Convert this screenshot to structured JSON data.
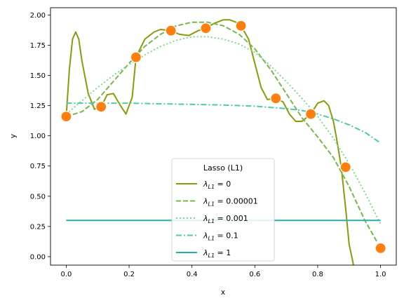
{
  "chart_data": {
    "type": "line",
    "xlabel": "x",
    "ylabel": "y",
    "xlim": [
      -0.05,
      1.05
    ],
    "ylim": [
      -0.07,
      2.06
    ],
    "xticks": [
      "0.0",
      "0.2",
      "0.4",
      "0.6",
      "0.8",
      "1.0"
    ],
    "yticks": [
      "0.00",
      "0.25",
      "0.50",
      "0.75",
      "1.00",
      "1.25",
      "1.50",
      "1.75",
      "2.00"
    ],
    "grid": false,
    "legend": {
      "title": "Lasso (L1)",
      "placement": "lower-center",
      "entries": [
        {
          "base": "λ",
          "sub": "L1",
          "value": "= 0"
        },
        {
          "base": "λ",
          "sub": "L1",
          "value": "= 0.00001"
        },
        {
          "base": "λ",
          "sub": "L1",
          "value": "= 0.001"
        },
        {
          "base": "λ",
          "sub": "L1",
          "value": "= 0.1"
        },
        {
          "base": "λ",
          "sub": "L1",
          "value": "= 1"
        }
      ]
    },
    "points": {
      "x": [
        0.0,
        0.111,
        0.222,
        0.333,
        0.444,
        0.556,
        0.667,
        0.778,
        0.889,
        1.0
      ],
      "y": [
        1.16,
        1.24,
        1.65,
        1.87,
        1.89,
        1.91,
        1.31,
        1.18,
        0.74,
        0.07
      ],
      "color": "#ff7f0e"
    },
    "series": [
      {
        "color": "#8c9a0a",
        "dash": "solid",
        "x": [
          0.0,
          0.01,
          0.02,
          0.03,
          0.04,
          0.05,
          0.07,
          0.09,
          0.111,
          0.13,
          0.15,
          0.17,
          0.19,
          0.21,
          0.222,
          0.25,
          0.28,
          0.3,
          0.333,
          0.36,
          0.39,
          0.42,
          0.444,
          0.47,
          0.5,
          0.52,
          0.54,
          0.556,
          0.58,
          0.6,
          0.62,
          0.64,
          0.667,
          0.69,
          0.71,
          0.73,
          0.75,
          0.778,
          0.8,
          0.82,
          0.835,
          0.85,
          0.86,
          0.875,
          0.889,
          0.9,
          0.91,
          0.916
        ],
        "y": [
          1.16,
          1.55,
          1.8,
          1.86,
          1.8,
          1.62,
          1.35,
          1.22,
          1.24,
          1.34,
          1.35,
          1.26,
          1.18,
          1.32,
          1.65,
          1.8,
          1.86,
          1.88,
          1.87,
          1.84,
          1.83,
          1.87,
          1.89,
          1.93,
          1.96,
          1.96,
          1.94,
          1.91,
          1.8,
          1.6,
          1.4,
          1.3,
          1.31,
          1.28,
          1.18,
          1.12,
          1.12,
          1.18,
          1.27,
          1.29,
          1.25,
          1.12,
          0.98,
          0.74,
          0.4,
          0.1,
          -0.02,
          -0.1
        ]
      },
      {
        "color": "#7ab648",
        "dash": "dashed",
        "x": [
          0.0,
          0.05,
          0.1,
          0.15,
          0.2,
          0.25,
          0.3,
          0.35,
          0.4,
          0.45,
          0.5,
          0.55,
          0.6,
          0.65,
          0.7,
          0.75,
          0.8,
          0.85,
          0.9,
          0.95,
          1.0
        ],
        "y": [
          1.16,
          1.2,
          1.3,
          1.45,
          1.6,
          1.74,
          1.84,
          1.91,
          1.94,
          1.94,
          1.91,
          1.84,
          1.72,
          1.55,
          1.35,
          1.15,
          0.99,
          0.82,
          0.58,
          0.3,
          0.07
        ]
      },
      {
        "color": "#7fd98d",
        "dash": "dotted",
        "x": [
          0.0,
          0.05,
          0.1,
          0.15,
          0.2,
          0.25,
          0.3,
          0.35,
          0.4,
          0.45,
          0.5,
          0.55,
          0.6,
          0.65,
          0.7,
          0.75,
          0.8,
          0.85,
          0.9,
          0.95,
          1.0
        ],
        "y": [
          1.18,
          1.29,
          1.4,
          1.5,
          1.59,
          1.67,
          1.74,
          1.79,
          1.82,
          1.82,
          1.8,
          1.76,
          1.69,
          1.58,
          1.45,
          1.31,
          1.16,
          0.98,
          0.77,
          0.53,
          0.27
        ]
      },
      {
        "color": "#4ecba0",
        "dash": "dashdot",
        "x": [
          0.0,
          0.1,
          0.2,
          0.3,
          0.4,
          0.5,
          0.6,
          0.7,
          0.75,
          0.8,
          0.85,
          0.9,
          0.95,
          1.0
        ],
        "y": [
          1.27,
          1.27,
          1.27,
          1.265,
          1.26,
          1.255,
          1.245,
          1.225,
          1.21,
          1.18,
          1.14,
          1.09,
          1.03,
          0.94
        ]
      },
      {
        "color": "#1fb5a5",
        "dash": "solid",
        "x": [
          0.0,
          1.0
        ],
        "y": [
          0.3,
          0.3
        ]
      }
    ]
  }
}
